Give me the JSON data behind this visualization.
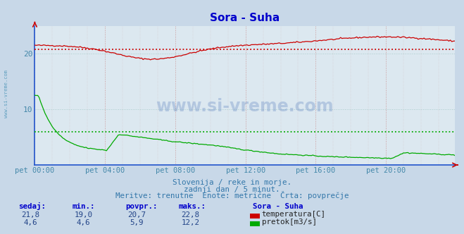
{
  "title": "Sora - Suha",
  "title_color": "#0000cc",
  "bg_color": "#c8d8e8",
  "plot_bg_color": "#dce8f0",
  "xlabel_color": "#4488aa",
  "ylabel_color": "#4488aa",
  "text1": "Slovenija / reke in morje.",
  "text2": "zadnji dan / 5 minut.",
  "text3": "Meritve: trenutne  Enote: metrične  Črta: povprečje",
  "table_headers": [
    "sedaj:",
    "min.:",
    "povpr.:",
    "maks.:"
  ],
  "row1_values": [
    "21,8",
    "19,0",
    "20,7",
    "22,8"
  ],
  "row2_values": [
    "4,6",
    "4,6",
    "5,9",
    "12,2"
  ],
  "legend_label1": "temperatura[C]",
  "legend_label2": "pretok[m3/s]",
  "legend_title": "Sora - Suha",
  "temp_color": "#cc0000",
  "flow_color": "#00aa00",
  "avg_temp": 20.7,
  "avg_flow": 5.9,
  "ylim_max": 25.0,
  "yticks": [
    10,
    20
  ],
  "x_tick_labels": [
    "pet 00:00",
    "pet 04:00",
    "pet 08:00",
    "pet 12:00",
    "pet 16:00",
    "pet 20:00"
  ],
  "x_tick_positions": [
    0,
    48,
    96,
    144,
    192,
    240
  ],
  "n_points": 288,
  "watermark": "www.si-vreme.com",
  "watermark_color": "#2255aa",
  "left_label": "www.si-vreme.com",
  "left_label_color": "#5599bb",
  "grid_color": "#cc9999",
  "grid_color2": "#aacccc",
  "spine_color": "#2255cc",
  "arrow_color": "#cc0000"
}
